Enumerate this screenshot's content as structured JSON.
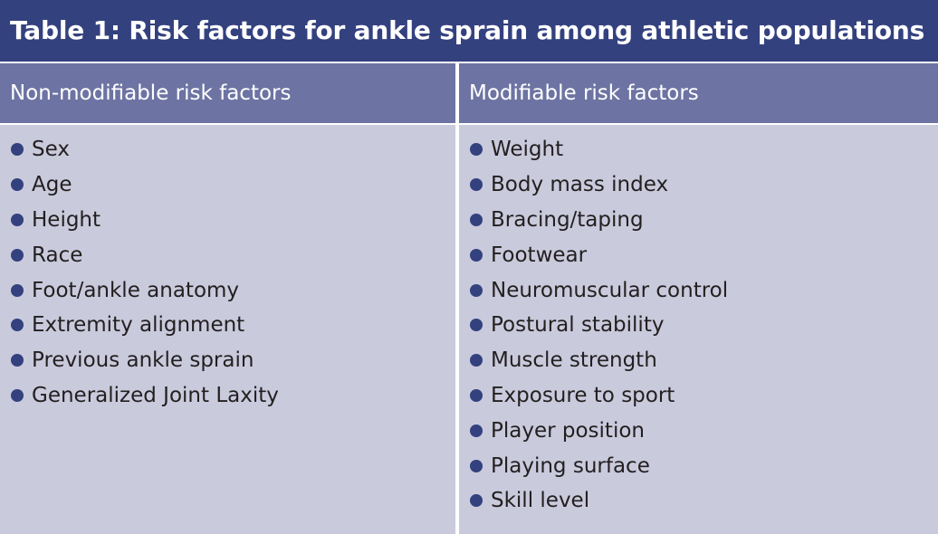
{
  "table": {
    "title": "Table 1: Risk factors for ankle sprain among athletic populations",
    "columns": [
      {
        "header": "Non-modifiable risk factors",
        "items": [
          "Sex",
          "Age",
          "Height",
          "Race",
          "Foot/ankle anatomy",
          "Extremity alignment",
          "Previous ankle sprain",
          "Generalized Joint Laxity"
        ]
      },
      {
        "header": "Modifiable risk factors",
        "items": [
          "Weight",
          "Body mass index",
          "Bracing/taping",
          "Footwear",
          "Neuromuscular control",
          "Postural stability",
          "Muscle strength",
          "Exposure to sport",
          "Player position",
          "Playing surface",
          "Skill level"
        ]
      }
    ]
  },
  "colors": {
    "title_bg": "#34417f",
    "header_bg": "#6d74a3",
    "body_bg": "#c9cadc",
    "bullet": "#34417f"
  },
  "icons": {
    "bullet": "bullet-dot-icon"
  }
}
